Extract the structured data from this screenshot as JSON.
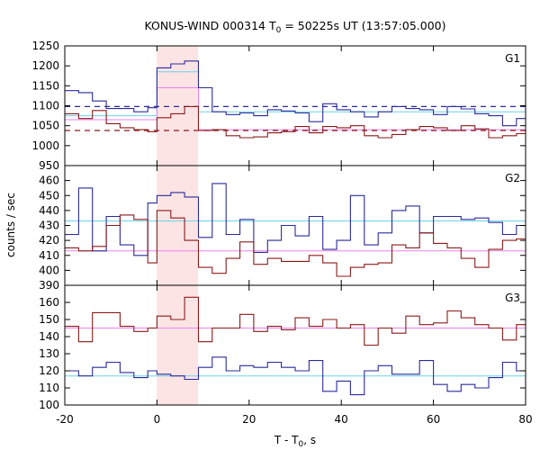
{
  "chart_data": {
    "type": "line",
    "title": "KONUS-WIND 000314 T",
    "title_subscript": "0",
    "title_suffix": " = 50225s UT (13:57:05.000)",
    "xlabel": "T - T",
    "xlabel_subscript": "0",
    "xlabel_suffix": ", s",
    "ylabel": "counts / sec",
    "xlim": [
      -20,
      80
    ],
    "xticks": [
      -20,
      0,
      20,
      40,
      60,
      80
    ],
    "highlight_interval": [
      0,
      8.9
    ],
    "colors": {
      "dark_red": "#8b1a1a",
      "dark_blue": "#2b2b9a",
      "cyan": "#6ad2e8",
      "pink": "#ee82ee",
      "highlight": "#fde4e4"
    },
    "panels": [
      {
        "label": "G1",
        "ylim": [
          950,
          1250
        ],
        "yticks": [
          950,
          1000,
          1050,
          1100,
          1150,
          1200,
          1250
        ],
        "edges": [
          -20,
          -17,
          -14,
          -11,
          -8,
          -5,
          -2,
          0,
          3,
          6,
          9,
          12,
          15,
          18,
          21,
          24,
          27,
          30,
          33,
          36,
          39,
          42,
          45,
          48,
          51,
          54,
          57,
          60,
          63,
          66,
          69,
          72,
          75,
          78,
          80
        ],
        "series": [
          {
            "color": "dark_blue",
            "values": [
              1138,
              1133,
              1112,
              1093,
              1093,
              1085,
              1095,
              1195,
              1205,
              1212,
              1145,
              1085,
              1078,
              1082,
              1075,
              1090,
              1087,
              1082,
              1060,
              1105,
              1090,
              1085,
              1072,
              1085,
              1098,
              1093,
              1090,
              1078,
              1098,
              1092,
              1080,
              1075,
              1050,
              1068
            ]
          },
          {
            "color": "dark_red",
            "values": [
              1080,
              1068,
              1088,
              1055,
              1045,
              1040,
              1035,
              1070,
              1080,
              1098,
              1038,
              1040,
              1025,
              1020,
              1022,
              1032,
              1035,
              1048,
              1032,
              1048,
              1045,
              1050,
              1025,
              1020,
              1028,
              1040,
              1048,
              1045,
              1038,
              1050,
              1042,
              1020,
              1025,
              1030
            ]
          }
        ],
        "overlay_steps": [
          {
            "color": "cyan",
            "edges": [
              -20,
              0,
              9,
              80
            ],
            "values": [
              1075,
              1185,
              1085
            ]
          },
          {
            "color": "pink",
            "edges": [
              -20,
              0,
              9,
              80
            ],
            "values": [
              1065,
              1145,
              1040
            ]
          }
        ],
        "dashed_levels": [
          {
            "color": "dark_blue",
            "value": 1098
          },
          {
            "color": "dark_red",
            "value": 1038
          }
        ]
      },
      {
        "label": "G2",
        "ylim": [
          390,
          470
        ],
        "yticks": [
          390,
          400,
          410,
          420,
          430,
          440,
          450,
          460
        ],
        "edges": [
          -20,
          -17,
          -14,
          -11,
          -8,
          -5,
          -2,
          0,
          3,
          6,
          9,
          12,
          15,
          18,
          21,
          24,
          27,
          30,
          33,
          36,
          39,
          42,
          45,
          48,
          51,
          54,
          57,
          60,
          63,
          66,
          69,
          72,
          75,
          78,
          80
        ],
        "series": [
          {
            "color": "dark_blue",
            "values": [
              424,
              455,
              413,
              436,
              417,
              410,
              445,
              450,
              452,
              449,
              422,
              458,
              424,
              434,
              412,
              420,
              430,
              423,
              436,
              414,
              420,
              450,
              417,
              425,
              440,
              443,
              425,
              436,
              436,
              434,
              435,
              432,
              424,
              430
            ]
          },
          {
            "color": "dark_red",
            "values": [
              415,
              413,
              416,
              430,
              437,
              434,
              405,
              440,
              435,
              420,
              402,
              398,
              408,
              419,
              404,
              408,
              406,
              406,
              410,
              405,
              396,
              402,
              404,
              405,
              417,
              415,
              425,
              418,
              415,
              408,
              402,
              414,
              420,
              421
            ]
          }
        ],
        "overlay_steps": [
          {
            "color": "cyan",
            "edges": [
              -20,
              80
            ],
            "values": [
              433
            ]
          },
          {
            "color": "pink",
            "edges": [
              -20,
              80
            ],
            "values": [
              413
            ]
          }
        ],
        "dashed_levels": []
      },
      {
        "label": "G3",
        "ylim": [
          100,
          170
        ],
        "yticks": [
          100,
          110,
          120,
          130,
          140,
          150,
          160
        ],
        "edges": [
          -20,
          -17,
          -14,
          -11,
          -8,
          -5,
          -2,
          0,
          3,
          6,
          9,
          12,
          15,
          18,
          21,
          24,
          27,
          30,
          33,
          36,
          39,
          42,
          45,
          48,
          51,
          54,
          57,
          60,
          63,
          66,
          69,
          72,
          75,
          78,
          80
        ],
        "series": [
          {
            "color": "dark_blue",
            "values": [
              120,
              117,
              122,
              125,
              119,
              116,
              120,
              118,
              117,
              115,
              122,
              128,
              120,
              123,
              122,
              125,
              122,
              120,
              126,
              108,
              114,
              106,
              120,
              123,
              118,
              118,
              126,
              112,
              108,
              112,
              110,
              116,
              125,
              120
            ]
          },
          {
            "color": "dark_red",
            "values": [
              146,
              137,
              154,
              154,
              146,
              143,
              145,
              152,
              150,
              163,
              137,
              145,
              145,
              153,
              143,
              146,
              144,
              151,
              146,
              150,
              145,
              147,
              135,
              145,
              142,
              152,
              147,
              148,
              155,
              151,
              147,
              145,
              138,
              147
            ]
          }
        ],
        "overlay_steps": [
          {
            "color": "cyan",
            "edges": [
              -20,
              80
            ],
            "values": [
              117
            ]
          },
          {
            "color": "pink",
            "edges": [
              -20,
              80
            ],
            "values": [
              145
            ]
          }
        ],
        "dashed_levels": []
      }
    ]
  }
}
